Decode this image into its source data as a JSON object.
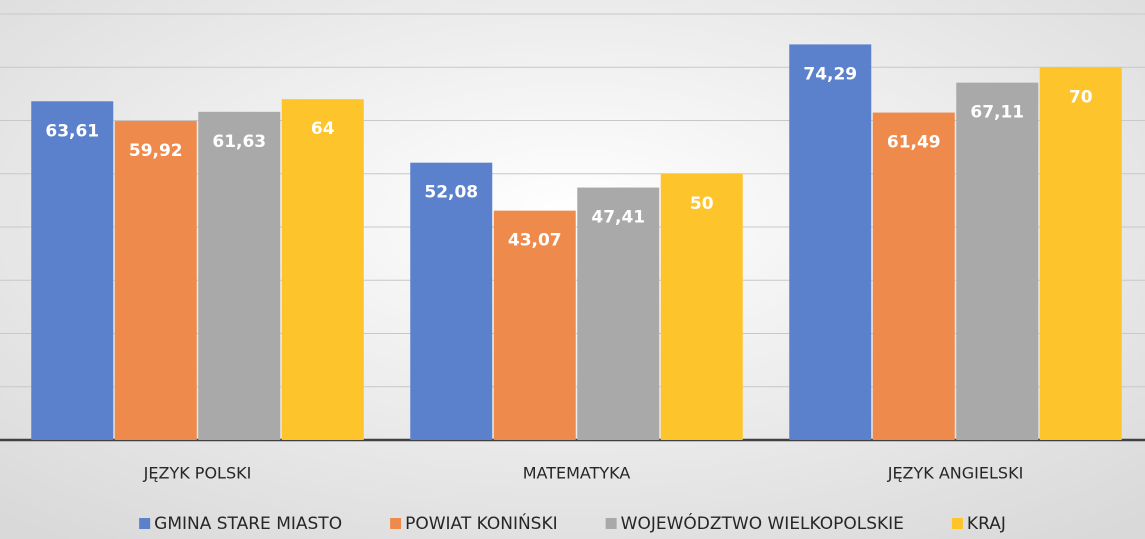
{
  "chart_data": {
    "type": "bar",
    "categories": [
      "JĘZYK POLSKI",
      "MATEMATYKA",
      "JĘZYK  ANGIELSKI"
    ],
    "series": [
      {
        "name": "GMINA STARE MIASTO",
        "color": "#5b81cd",
        "values": [
          63.61,
          52.08,
          74.29
        ],
        "value_labels": [
          "63,61",
          "52,08",
          "74,29"
        ]
      },
      {
        "name": "POWIAT KONIŃSKI",
        "color": "#ee8b4c",
        "values": [
          59.92,
          43.07,
          61.49
        ],
        "value_labels": [
          "59,92",
          "43,07",
          "61,49"
        ]
      },
      {
        "name": "WOJEWÓDZTWO WIELKOPOLSKIE",
        "color": "#a9a9a9",
        "values": [
          61.63,
          47.41,
          67.11
        ],
        "value_labels": [
          "61,63",
          "47,41",
          "67,11"
        ]
      },
      {
        "name": "KRAJ",
        "color": "#fec42c",
        "values": [
          64,
          50,
          70
        ],
        "value_labels": [
          "64",
          "50",
          "70"
        ]
      }
    ],
    "ylim": [
      0,
      80
    ],
    "yticks": [
      0,
      10,
      20,
      30,
      40,
      50,
      60,
      70,
      80
    ],
    "grid": true,
    "legend": "bottom"
  }
}
